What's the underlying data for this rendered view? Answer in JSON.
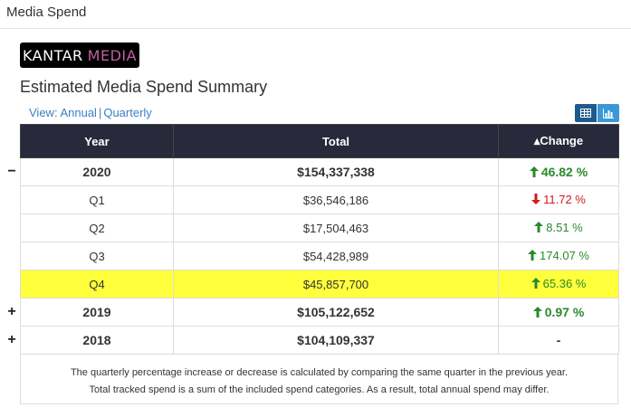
{
  "header": {
    "title": "Media Spend"
  },
  "logo": {
    "part1": "KANTAR",
    "part2": "MEDIA"
  },
  "summary": {
    "title": "Estimated Media Spend Summary",
    "view_prefix": "View: ",
    "annual_label": "Annual",
    "separator": "|",
    "quarterly_label": "Quarterly"
  },
  "table": {
    "columns": {
      "year": "Year",
      "total": "Total",
      "change": "Change",
      "change_sort_glyph": "▴"
    },
    "rows": [
      {
        "label": "2020",
        "total": "$154,337,338",
        "change": "46.82 %",
        "direction": "up",
        "toggle": "−"
      },
      {
        "label": "Q1",
        "total": "$36,546,186",
        "change": "11.72 %",
        "direction": "down"
      },
      {
        "label": "Q2",
        "total": "$17,504,463",
        "change": "8.51 %",
        "direction": "up"
      },
      {
        "label": "Q3",
        "total": "$54,428,989",
        "change": "174.07 %",
        "direction": "up"
      },
      {
        "label": "Q4",
        "total": "$45,857,700",
        "change": "65.36 %",
        "direction": "up"
      },
      {
        "label": "2019",
        "total": "$105,122,652",
        "change": "0.97 %",
        "direction": "up",
        "toggle": "+"
      },
      {
        "label": "2018",
        "total": "$104,109,337",
        "change": "-",
        "direction": "none",
        "toggle": "+"
      }
    ]
  },
  "footnote": {
    "line1": "The quarterly percentage increase or decrease is calculated by comparing the same quarter in the previous year.",
    "line2": "Total tracked spend is a sum of the included spend categories. As a result, total annual spend may differ."
  },
  "colors": {
    "header_bg": "#282a3b",
    "up": "#2a8a2a",
    "down": "#d41a1a",
    "highlight": "#ffff3c",
    "link": "#3a80c0"
  }
}
